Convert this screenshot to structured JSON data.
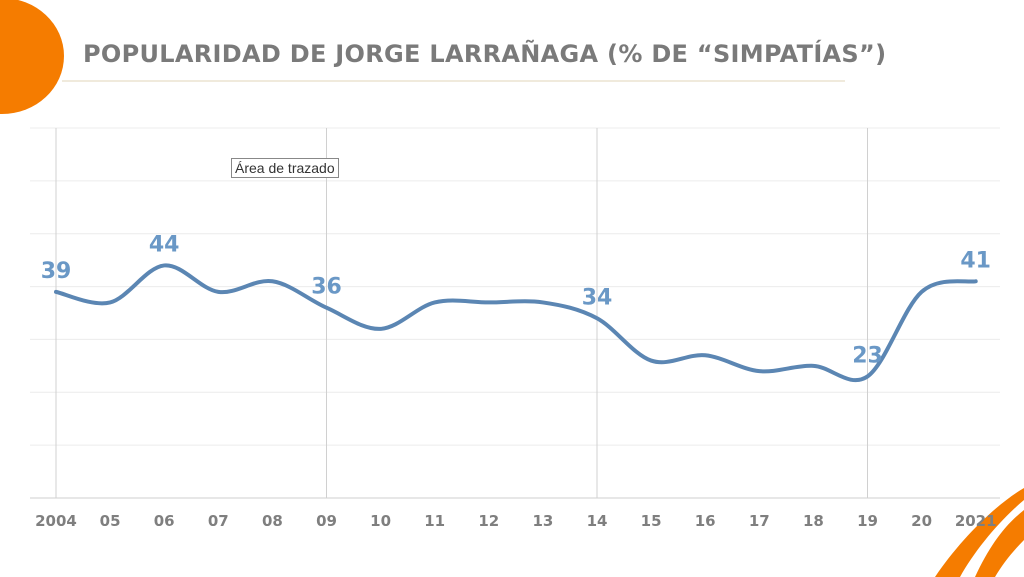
{
  "title": "POPULARIDAD DE JORGE LARRAÑAGA (% DE “SIMPATÍAS”)",
  "tooltip": "Área de trazado",
  "colors": {
    "line": "#5b86b3",
    "label": "#6a98c6",
    "accent": "#f57c00",
    "axis_text": "#7f7f7f"
  },
  "chart_data": {
    "type": "line",
    "title": "POPULARIDAD DE JORGE LARRAÑAGA (% DE “SIMPATÍAS”)",
    "xlabel": "",
    "ylabel": "",
    "categories": [
      "2004",
      "05",
      "06",
      "07",
      "08",
      "09",
      "10",
      "11",
      "12",
      "13",
      "14",
      "15",
      "16",
      "17",
      "18",
      "19",
      "20",
      "2021"
    ],
    "series": [
      {
        "values": [
          39,
          37,
          44,
          39,
          41,
          36,
          32,
          37,
          37,
          37,
          34,
          26,
          27,
          24,
          25,
          23,
          39,
          41
        ]
      }
    ],
    "data_labels": [
      {
        "index": 0,
        "text": "39"
      },
      {
        "index": 2,
        "text": "44"
      },
      {
        "index": 5,
        "text": "36"
      },
      {
        "index": 10,
        "text": "34"
      },
      {
        "index": 15,
        "text": "23"
      },
      {
        "index": 17,
        "text": "41"
      }
    ],
    "ylim": [
      0,
      70
    ],
    "y_grid_step": 10,
    "grid": true,
    "smooth": true,
    "vertical_gridlines_at": [
      "2004",
      "09",
      "14",
      "19"
    ],
    "y_tick_labels_shown": false,
    "legend": "none"
  }
}
